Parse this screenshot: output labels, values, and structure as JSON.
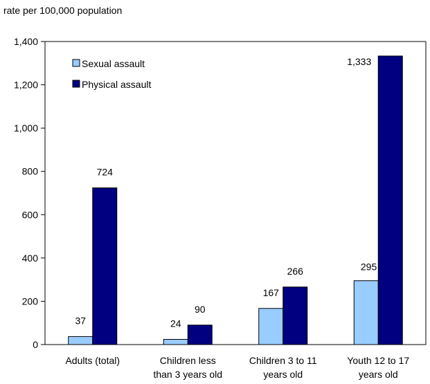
{
  "chart_data": {
    "type": "bar",
    "ylabel": "rate per 100,000 population",
    "categories": [
      [
        "Adults (total)"
      ],
      [
        "Children less",
        "than 3 years old"
      ],
      [
        "Children 3 to 11",
        "years old"
      ],
      [
        "Youth 12 to 17",
        "years old"
      ]
    ],
    "series": [
      {
        "name": "Sexual assault",
        "values": [
          37,
          24,
          167,
          295
        ],
        "labels": [
          "37",
          "24",
          "167",
          "295"
        ],
        "color": "#99ccff"
      },
      {
        "name": "Physical assault",
        "values": [
          724,
          90,
          266,
          1333
        ],
        "labels": [
          "724",
          "90",
          "266",
          "1,333"
        ],
        "color": "#000080"
      }
    ],
    "ylim": [
      0,
      1400
    ],
    "yticks": [
      0,
      200,
      400,
      600,
      800,
      1000,
      1200,
      1400
    ],
    "ytick_labels": [
      "0",
      "200",
      "400",
      "600",
      "800",
      "1,000",
      "1,200",
      "1,400"
    ],
    "grid": false,
    "legend_position": "top-left"
  }
}
